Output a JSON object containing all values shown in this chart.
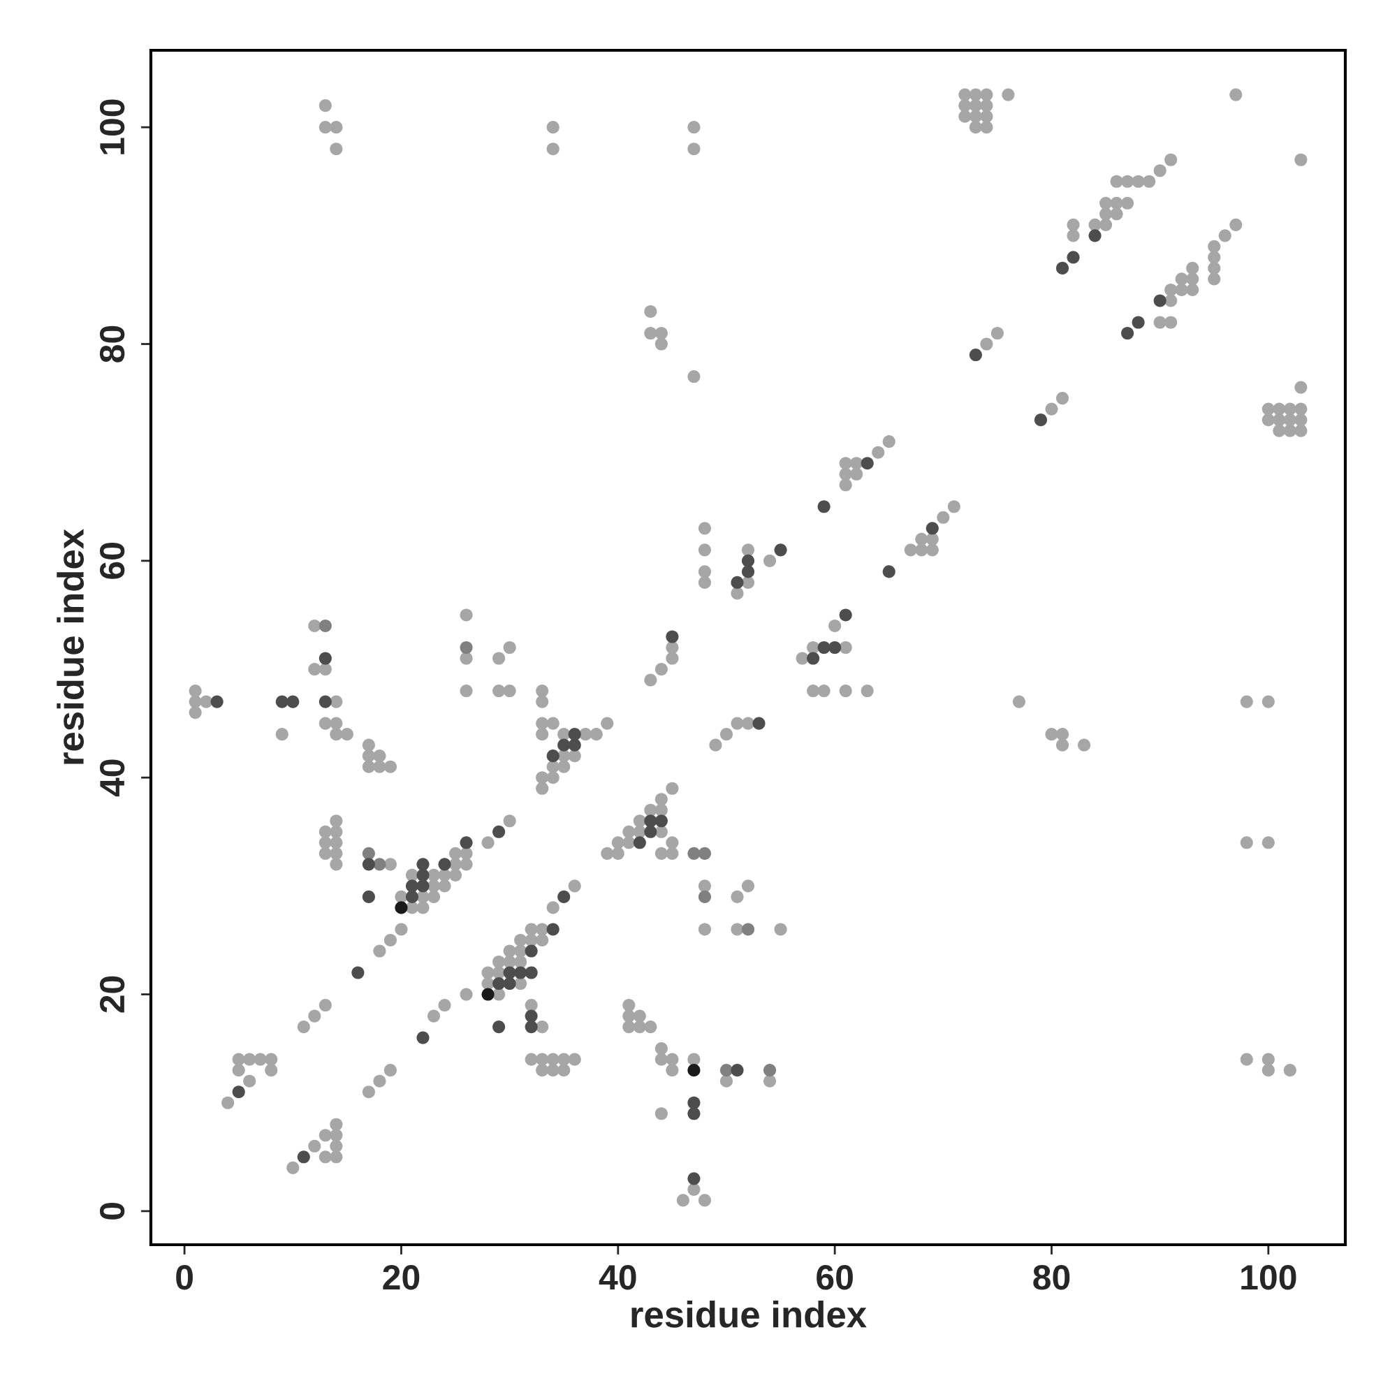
{
  "chart_data": {
    "type": "scatter",
    "xlabel": "residue index",
    "ylabel": "residue index",
    "xlim": [
      -3.1,
      107.1
    ],
    "ylim": [
      -3.1,
      107.1
    ],
    "xticks": [
      0,
      20,
      40,
      60,
      80,
      100
    ],
    "yticks": [
      0,
      20,
      40,
      60,
      80,
      100
    ],
    "grid": false,
    "legend": false,
    "marker": "circle",
    "series": [
      {
        "color": "#a6a6a6",
        "x": [
          46,
          48,
          47,
          10,
          13,
          14,
          12,
          14,
          13,
          14,
          14,
          44,
          4,
          17,
          6,
          18,
          50,
          54,
          5,
          8,
          19,
          33,
          34,
          35,
          45,
          100,
          102,
          5,
          6,
          7,
          8,
          32,
          33,
          34,
          35,
          36,
          44,
          45,
          47,
          98,
          100,
          44,
          11,
          33,
          41,
          42,
          43,
          12,
          23,
          41,
          42,
          13,
          24,
          32,
          41,
          26,
          29,
          28,
          31,
          28,
          29,
          29,
          30,
          31,
          18,
          30,
          31,
          19,
          31,
          32,
          33,
          20,
          32,
          33,
          48,
          51,
          55,
          21,
          22,
          34,
          20,
          22,
          23,
          51,
          23,
          24,
          36,
          48,
          52,
          21,
          23,
          24,
          25,
          14,
          19,
          25,
          26,
          13,
          14,
          25,
          26,
          39,
          40,
          44,
          45,
          13,
          14,
          28,
          40,
          41,
          45,
          98,
          100,
          13,
          14,
          41,
          42,
          44,
          14,
          30,
          42,
          43,
          44,
          44,
          33,
          45,
          33,
          34,
          17,
          18,
          19,
          34,
          35,
          17,
          18,
          35,
          36,
          17,
          49,
          81,
          83,
          9,
          14,
          15,
          33,
          35,
          37,
          38,
          50,
          80,
          81,
          13,
          14,
          33,
          34,
          39,
          51,
          52,
          1,
          1,
          2,
          14,
          33,
          77,
          98,
          100,
          1,
          26,
          29,
          30,
          33,
          58,
          59,
          61,
          63,
          43,
          12,
          13,
          44,
          26,
          29,
          45,
          57,
          30,
          45,
          58,
          61,
          12,
          60,
          26,
          51,
          48,
          52,
          48,
          54,
          48,
          52,
          67,
          68,
          69,
          68,
          69,
          48,
          70,
          71,
          61,
          61,
          62,
          61,
          62,
          64,
          65,
          101,
          102,
          103,
          100,
          101,
          102,
          103,
          80,
          100,
          101,
          102,
          103,
          81,
          103,
          47,
          44,
          74,
          43,
          44,
          75,
          90,
          91,
          43,
          91,
          91,
          92,
          93,
          92,
          93,
          95,
          93,
          95,
          95,
          95,
          82,
          96,
          82,
          84,
          85,
          97,
          85,
          86,
          85,
          86,
          87,
          86,
          87,
          88,
          89,
          90,
          91,
          103,
          14,
          34,
          47,
          13,
          14,
          34,
          47,
          73,
          74,
          72,
          73,
          74,
          13,
          72,
          73,
          74,
          72,
          73,
          74,
          76,
          97
        ],
        "values": [
          1,
          1,
          2,
          4,
          5,
          5,
          6,
          6,
          7,
          7,
          8,
          9,
          10,
          11,
          12,
          12,
          12,
          12,
          13,
          13,
          13,
          13,
          13,
          13,
          13,
          13,
          13,
          14,
          14,
          14,
          14,
          14,
          14,
          14,
          14,
          14,
          14,
          14,
          14,
          14,
          14,
          15,
          17,
          17,
          17,
          17,
          17,
          18,
          18,
          18,
          18,
          19,
          19,
          19,
          19,
          20,
          20,
          21,
          21,
          22,
          22,
          23,
          23,
          23,
          24,
          24,
          24,
          25,
          25,
          25,
          25,
          26,
          26,
          26,
          26,
          26,
          26,
          28,
          28,
          28,
          29,
          29,
          29,
          29,
          30,
          30,
          30,
          30,
          30,
          31,
          31,
          31,
          31,
          32,
          32,
          32,
          32,
          33,
          33,
          33,
          33,
          33,
          33,
          33,
          33,
          34,
          34,
          34,
          34,
          34,
          34,
          34,
          34,
          35,
          35,
          35,
          35,
          35,
          36,
          36,
          36,
          37,
          37,
          38,
          39,
          39,
          40,
          40,
          41,
          41,
          41,
          41,
          41,
          42,
          42,
          42,
          42,
          43,
          43,
          43,
          43,
          44,
          44,
          44,
          44,
          44,
          44,
          44,
          44,
          44,
          44,
          45,
          45,
          45,
          45,
          45,
          45,
          45,
          46,
          47,
          47,
          47,
          47,
          47,
          47,
          47,
          48,
          48,
          48,
          48,
          48,
          48,
          48,
          48,
          48,
          49,
          50,
          50,
          50,
          51,
          51,
          51,
          51,
          52,
          52,
          52,
          52,
          54,
          54,
          55,
          57,
          58,
          58,
          59,
          60,
          61,
          61,
          61,
          61,
          61,
          62,
          62,
          63,
          64,
          65,
          67,
          68,
          68,
          69,
          69,
          70,
          71,
          72,
          72,
          72,
          73,
          73,
          73,
          73,
          74,
          74,
          74,
          74,
          74,
          75,
          76,
          77,
          80,
          80,
          81,
          81,
          81,
          82,
          82,
          83,
          84,
          85,
          85,
          85,
          86,
          86,
          86,
          87,
          87,
          88,
          89,
          90,
          90,
          91,
          91,
          91,
          91,
          92,
          92,
          93,
          93,
          93,
          95,
          95,
          95,
          95,
          96,
          97,
          97,
          98,
          98,
          98,
          100,
          100,
          100,
          100,
          100,
          100,
          101,
          101,
          101,
          102,
          102,
          102,
          102,
          103,
          103,
          103,
          103,
          103
        ]
      },
      {
        "color": "#808080",
        "x": [
          50,
          54,
          52,
          48,
          18,
          17,
          47,
          48,
          26,
          13
        ],
        "values": [
          13,
          13,
          26,
          29,
          32,
          33,
          33,
          33,
          52,
          54
        ]
      },
      {
        "color": "#4d4d4d",
        "x": [
          47,
          11,
          47,
          47,
          5,
          51,
          22,
          29,
          32,
          32,
          29,
          30,
          16,
          30,
          31,
          32,
          32,
          34,
          17,
          21,
          35,
          21,
          22,
          22,
          17,
          22,
          24,
          26,
          42,
          29,
          43,
          43,
          44,
          34,
          35,
          36,
          36,
          53,
          3,
          9,
          10,
          13,
          13,
          58,
          59,
          60,
          45,
          61,
          51,
          52,
          65,
          52,
          55,
          69,
          59,
          63,
          79,
          73,
          87,
          88,
          90,
          81,
          82,
          84
        ],
        "values": [
          3,
          5,
          9,
          10,
          11,
          13,
          16,
          17,
          17,
          18,
          21,
          21,
          22,
          22,
          22,
          22,
          24,
          26,
          29,
          29,
          29,
          30,
          30,
          31,
          32,
          32,
          32,
          34,
          34,
          35,
          35,
          36,
          36,
          42,
          43,
          43,
          44,
          45,
          47,
          47,
          47,
          47,
          51,
          51,
          52,
          52,
          53,
          55,
          58,
          59,
          59,
          60,
          61,
          63,
          65,
          69,
          73,
          79,
          81,
          82,
          84,
          87,
          88,
          90
        ]
      },
      {
        "color": "#1a1a1a",
        "x": [
          28,
          20,
          47
        ],
        "values": [
          20,
          28,
          13
        ]
      }
    ]
  }
}
